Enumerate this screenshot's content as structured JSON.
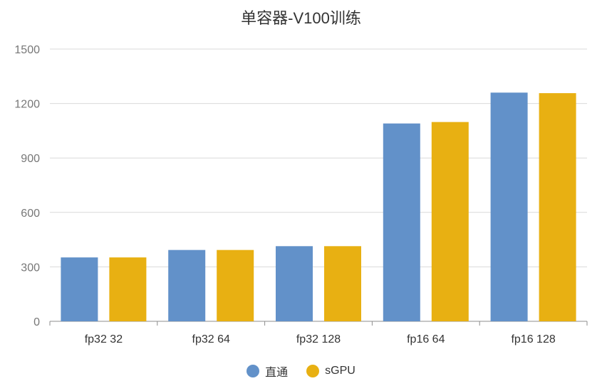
{
  "chart_data": {
    "type": "bar",
    "title": "单容器-V100训练",
    "xlabel": "",
    "ylabel": "",
    "categories": [
      "fp32 32",
      "fp32 64",
      "fp32 128",
      "fp16 64",
      "fp16 128"
    ],
    "series": [
      {
        "name": "直通",
        "color": "#6291c9",
        "values": [
          352,
          393,
          414,
          1090,
          1260
        ]
      },
      {
        "name": "sGPU",
        "color": "#e8b012",
        "values": [
          352,
          393,
          414,
          1098,
          1257
        ]
      }
    ],
    "ylim": [
      0,
      1500
    ],
    "yticks": [
      "0",
      "300",
      "600",
      "900",
      "1200",
      "1500"
    ],
    "grid": true,
    "legend_position": "bottom-center"
  }
}
